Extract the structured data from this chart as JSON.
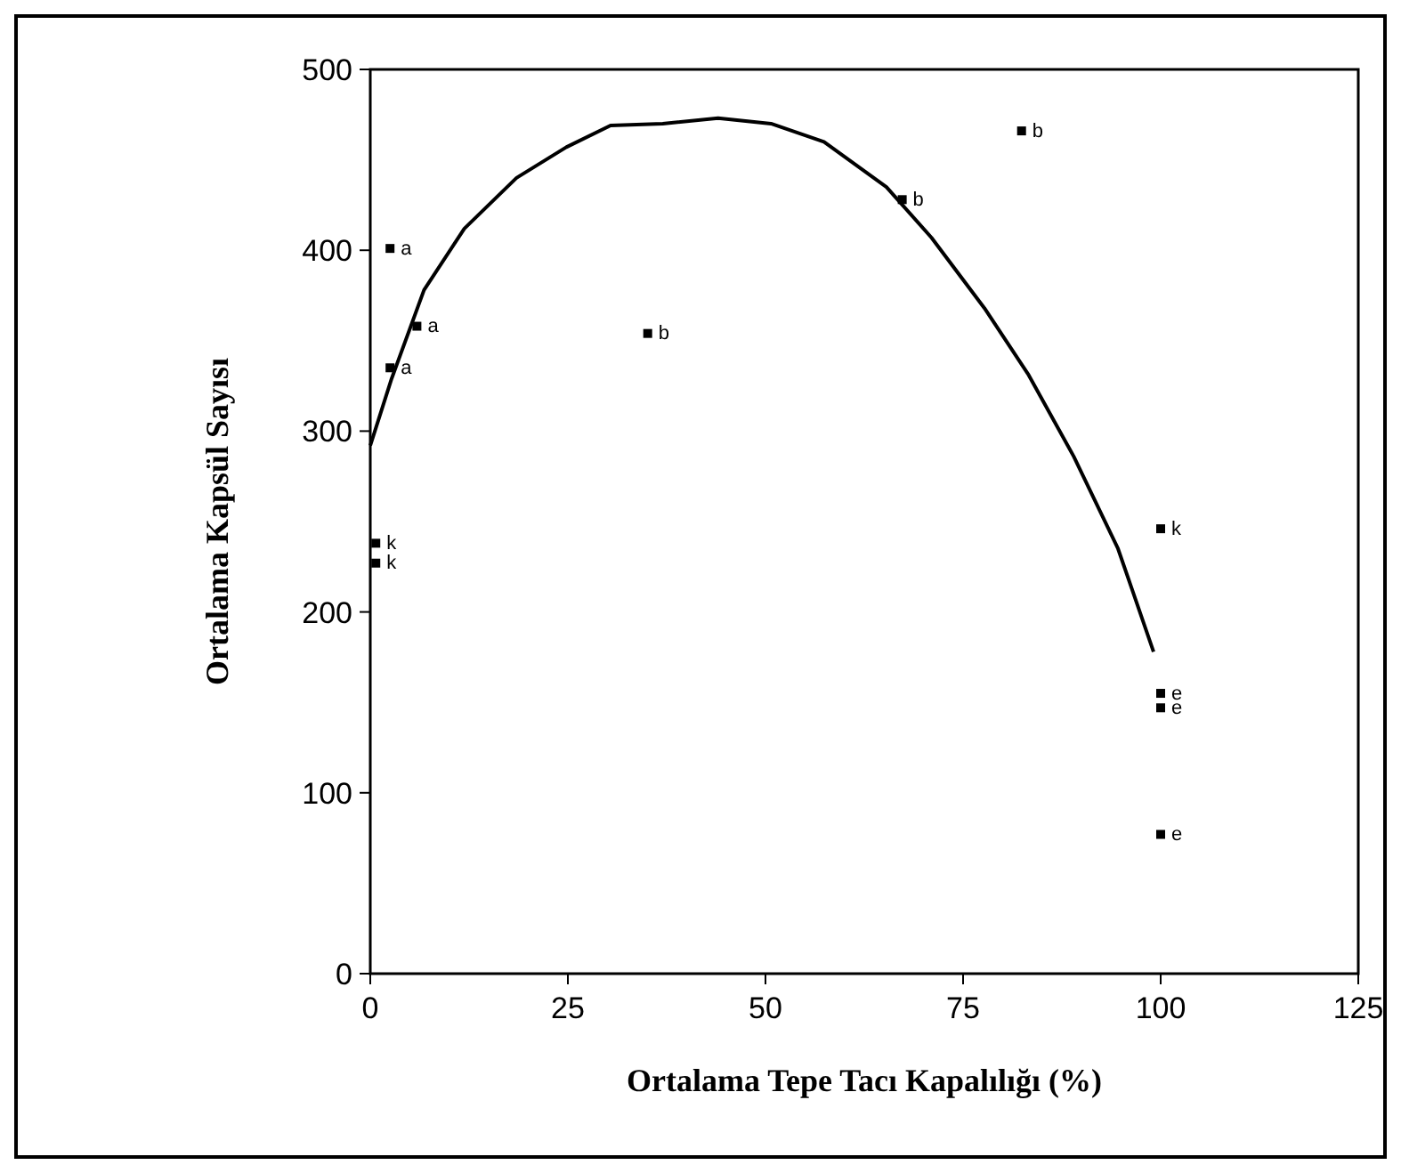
{
  "chart_data": {
    "type": "scatter",
    "xlabel": "Ortalama Tepe Tacı Kapalılığı (%)",
    "ylabel": "Ortalama Kapsül Sayısı",
    "xlim": [
      0,
      125
    ],
    "ylim": [
      0,
      500
    ],
    "xticks": [
      0,
      25,
      50,
      75,
      100,
      125
    ],
    "yticks": [
      0,
      100,
      200,
      300,
      400,
      500
    ],
    "grid": false,
    "series": [
      {
        "color": "#000000",
        "marker": "square",
        "x": [
          2.5,
          5.9,
          2.5,
          35.1,
          67.3,
          82.4,
          0.7,
          0.7,
          100,
          100,
          100,
          100
        ],
        "values": [
          401,
          358,
          335,
          354,
          428,
          466,
          238,
          227,
          246,
          155,
          147,
          77
        ]
      },
      {
        "type": "line",
        "color": "#000000",
        "line_style": "solid",
        "x": [
          0,
          2.7,
          6.8,
          11.9,
          18.5,
          24.8,
          30.4,
          37,
          44,
          50.7,
          57.4,
          65.3,
          71,
          77.7,
          83.3,
          89,
          94.6,
          99.1
        ],
        "values": [
          292,
          329,
          378,
          412,
          440,
          457,
          469,
          470,
          473,
          470,
          460,
          435,
          407,
          368,
          331,
          286,
          235,
          178
        ]
      }
    ],
    "annotations": [
      {
        "text": "a",
        "x": 2.5,
        "y": 401
      },
      {
        "text": "a",
        "x": 5.9,
        "y": 358
      },
      {
        "text": "a",
        "x": 2.5,
        "y": 335
      },
      {
        "text": "b",
        "x": 35.1,
        "y": 354
      },
      {
        "text": "b",
        "x": 67.3,
        "y": 428
      },
      {
        "text": "b",
        "x": 82.4,
        "y": 466
      },
      {
        "text": "k",
        "x": 0.7,
        "y": 238
      },
      {
        "text": "k",
        "x": 0.7,
        "y": 227
      },
      {
        "text": "k",
        "x": 100,
        "y": 246
      },
      {
        "text": "e",
        "x": 100,
        "y": 155
      },
      {
        "text": "e",
        "x": 100,
        "y": 147
      },
      {
        "text": "e",
        "x": 100,
        "y": 77
      }
    ]
  }
}
